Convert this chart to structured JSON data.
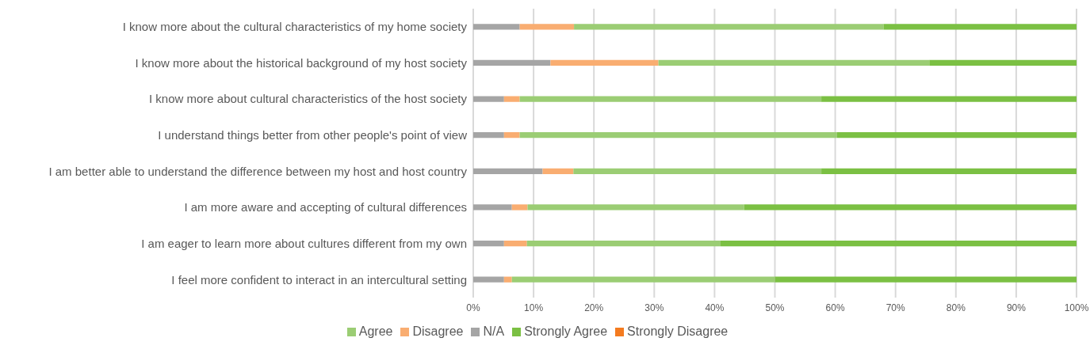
{
  "chart_data": {
    "type": "bar",
    "orientation": "horizontal",
    "stacked": true,
    "categories": [
      "I know more about the cultural characteristics of my home society",
      "I know more about the historical background of my host society",
      "I know more about cultural characteristics of the host society",
      "I understand things better from other people's point of view",
      "I am better able to understand the difference between my host and host country",
      "I am more aware and accepting of cultural differences",
      "I am eager to learn more about cultures different from my own",
      "I feel more confident to interact in an intercultural setting"
    ],
    "series": [
      {
        "name": "N/A",
        "color": "#a5a5a5",
        "values": [
          7.7,
          12.8,
          5.1,
          5.1,
          11.5,
          6.4,
          5.1,
          5.1
        ]
      },
      {
        "name": "Strongly Disagree",
        "color": "#f47b20",
        "values": [
          0,
          0,
          0,
          0,
          0,
          0,
          0,
          0
        ]
      },
      {
        "name": "Disagree",
        "color": "#f9ad71",
        "values": [
          9.0,
          17.9,
          2.6,
          2.6,
          5.1,
          2.6,
          3.8,
          1.3
        ]
      },
      {
        "name": "Agree",
        "color": "#9bcd74",
        "values": [
          51.3,
          44.9,
          50.0,
          52.6,
          41.1,
          35.9,
          32.1,
          43.6
        ]
      },
      {
        "name": "Strongly Agree",
        "color": "#7bc043",
        "values": [
          32.0,
          24.4,
          42.3,
          39.7,
          42.3,
          55.1,
          59.0,
          50.0
        ]
      }
    ],
    "xlim": [
      0,
      100
    ],
    "xticks": [
      {
        "value": 0,
        "label": "0%"
      },
      {
        "value": 10,
        "label": "10%"
      },
      {
        "value": 20,
        "label": "20%"
      },
      {
        "value": 30,
        "label": "30%"
      },
      {
        "value": 40,
        "label": "40%"
      },
      {
        "value": 50,
        "label": "50%"
      },
      {
        "value": 60,
        "label": "60%"
      },
      {
        "value": 70,
        "label": "70%"
      },
      {
        "value": 80,
        "label": "80%"
      },
      {
        "value": 90,
        "label": "90%"
      },
      {
        "value": 100,
        "label": "100%"
      }
    ],
    "grid": "x",
    "legend": "bottom"
  }
}
